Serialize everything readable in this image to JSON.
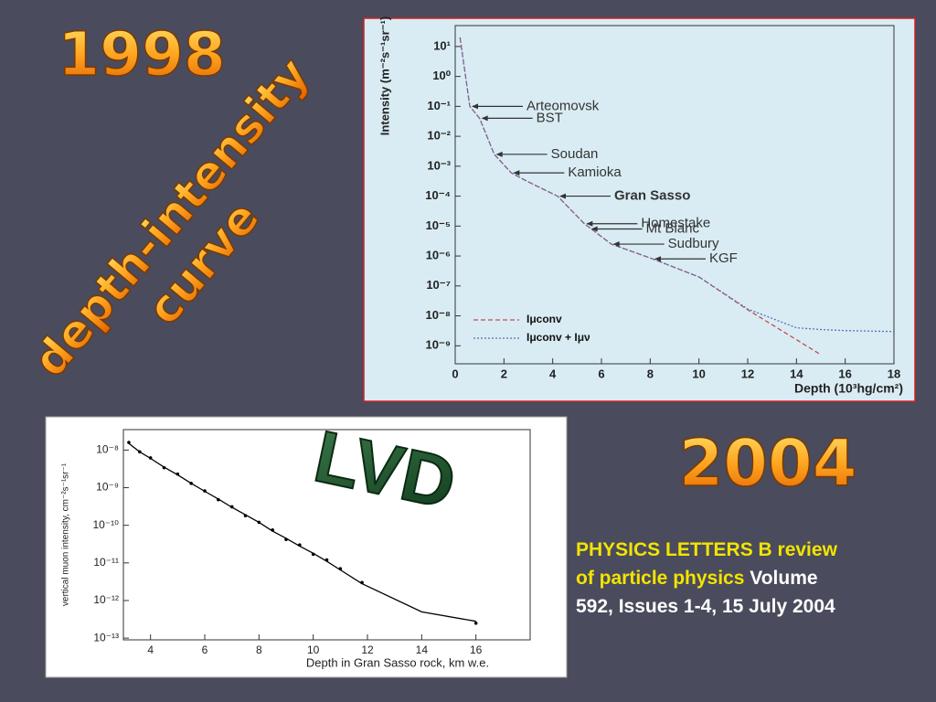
{
  "slide": {
    "year_left": "1998",
    "wordart_lines": [
      "depth-intensity",
      "curve"
    ],
    "year_right": "2004",
    "experiment": "LVD",
    "citation": {
      "highlight": "PHYSICS LETTERS B review of particle physics",
      "rest": "Volume 592, Issues 1-4, 15 July 2004"
    }
  },
  "chart_data": [
    {
      "type": "line",
      "ylog": true,
      "y_label": "Intensity (m⁻²s⁻¹sr⁻¹)",
      "x_label": "Depth (10³hg/cm²)",
      "x": [
        0.2,
        0.6,
        1,
        1.6,
        2.3,
        3,
        4.2,
        5.3,
        6.4,
        8.1,
        10,
        12,
        14,
        15,
        16,
        18
      ],
      "series": [
        {
          "name": "Iμconv",
          "color": "#c0504d",
          "dash": "5,3",
          "values": [
            20,
            0.1,
            0.04,
            0.0025,
            0.0006,
            0.0003,
            0.0001,
            1.2e-05,
            2.5e-06,
            8e-07,
            2e-07,
            1.6e-08,
            1.6e-09,
            5e-10,
            null,
            null
          ]
        },
        {
          "name": "Iμconv + Iμν",
          "color": "#5b6fb3",
          "dash": "2,2",
          "values": [
            20,
            0.1,
            0.04,
            0.0025,
            0.0006,
            0.0003,
            0.0001,
            1.2e-05,
            2.5e-06,
            8e-07,
            2e-07,
            1.7e-08,
            4e-09,
            3.5e-09,
            3.2e-09,
            3e-09
          ]
        }
      ],
      "annotations": [
        {
          "text": "Arteomovsk",
          "x": 0.6,
          "y": 0.1
        },
        {
          "text": "BST",
          "x": 1,
          "y": 0.04
        },
        {
          "text": "Soudan",
          "x": 1.6,
          "y": 0.0025
        },
        {
          "text": "Kamioka",
          "x": 2.3,
          "y": 0.0006
        },
        {
          "text": "Gran Sasso",
          "x": 4.2,
          "y": 0.0001
        },
        {
          "text": "Homestake",
          "x": 5.3,
          "y": 1.2e-05
        },
        {
          "text": "Mt Blanc",
          "x": 5.5,
          "y": 8e-06
        },
        {
          "text": "Sudbury",
          "x": 6.4,
          "y": 2.5e-06
        },
        {
          "text": "KGF",
          "x": 8.1,
          "y": 8e-07
        }
      ],
      "xlim": [
        0,
        18
      ],
      "xticks": [
        0,
        2,
        4,
        6,
        8,
        10,
        12,
        14,
        16,
        18
      ],
      "ylim": [
        2.5e-10,
        50
      ],
      "yticks": [
        {
          "value": 1e-09,
          "label": "10⁻⁹"
        },
        {
          "value": 1e-08,
          "label": "10⁻⁸"
        },
        {
          "value": 1e-07,
          "label": "10⁻⁷"
        },
        {
          "value": 1e-06,
          "label": "10⁻⁶"
        },
        {
          "value": 1e-05,
          "label": "10⁻⁵"
        },
        {
          "value": 0.0001,
          "label": "10⁻⁴"
        },
        {
          "value": 0.001,
          "label": "10⁻³"
        },
        {
          "value": 0.01,
          "label": "10⁻²"
        },
        {
          "value": 0.1,
          "label": "10⁻¹"
        },
        {
          "value": 1,
          "label": "10⁰"
        },
        {
          "value": 10,
          "label": "10¹"
        }
      ],
      "legend": "lower left"
    },
    {
      "type": "line",
      "ylog": true,
      "y_label": "vertical muon intensity, cm⁻²s⁻¹sr⁻¹",
      "x_label": "Depth in Gran Sasso rock, km w.e.",
      "x": [
        3.2,
        3.6,
        4,
        4.5,
        5,
        5.5,
        6,
        6.5,
        7,
        7.5,
        8,
        8.5,
        9,
        9.5,
        10,
        10.5,
        11,
        11.8,
        14,
        16
      ],
      "series": [
        {
          "color": "#000000",
          "values": [
            1.5e-08,
            9e-09,
            6e-09,
            3.5e-09,
            2.2e-09,
            1.3e-09,
            8e-10,
            5e-10,
            3e-10,
            1.9e-10,
            1.2e-10,
            7e-11,
            4.5e-11,
            2.8e-11,
            1.8e-11,
            1.1e-11,
            6.5e-12,
            2.8e-12,
            5e-13,
            2.8e-13
          ]
        },
        {
          "color": "#000000",
          "mode": "points",
          "values": [
            1.6e-08,
            9e-09,
            6.2e-09,
            3.4e-09,
            2.3e-09,
            1.3e-09,
            8.2e-10,
            4.8e-10,
            3.1e-10,
            1.8e-10,
            1.2e-10,
            7.5e-11,
            4.2e-11,
            3e-11,
            1.7e-11,
            1.2e-11,
            7e-12,
            3e-12,
            null,
            2.5e-13
          ]
        }
      ],
      "xlim": [
        3,
        18
      ],
      "xticks": [
        4,
        6,
        8,
        10,
        12,
        14,
        16
      ],
      "ylim": [
        9e-14,
        3.5e-08
      ],
      "yticks": [
        {
          "value": 1e-13,
          "label": "10⁻¹³"
        },
        {
          "value": 1e-12,
          "label": "10⁻¹²"
        },
        {
          "value": 1e-11,
          "label": "10⁻¹¹"
        },
        {
          "value": 1e-10,
          "label": "10⁻¹⁰"
        },
        {
          "value": 1e-09,
          "label": "10⁻⁹"
        },
        {
          "value": 1e-08,
          "label": "10⁻⁸"
        }
      ]
    }
  ]
}
